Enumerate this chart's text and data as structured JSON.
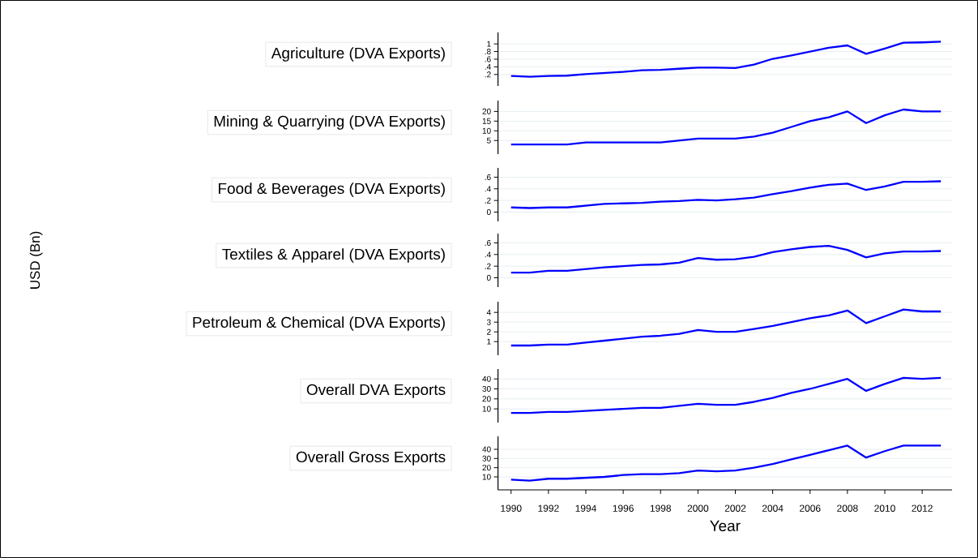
{
  "chart_data": [
    {
      "type": "line",
      "title": "Agriculture (DVA Exports)",
      "x": [
        1990,
        1991,
        1992,
        1993,
        1994,
        1995,
        1996,
        1997,
        1998,
        1999,
        2000,
        2001,
        2002,
        2003,
        2004,
        2005,
        2006,
        2007,
        2008,
        2009,
        2010,
        2011,
        2012,
        2013
      ],
      "values": [
        0.16,
        0.14,
        0.16,
        0.17,
        0.21,
        0.24,
        0.27,
        0.31,
        0.32,
        0.35,
        0.38,
        0.38,
        0.37,
        0.46,
        0.61,
        0.7,
        0.8,
        0.9,
        0.96,
        0.74,
        0.88,
        1.03,
        1.04,
        1.06
      ],
      "color": "#0000ff",
      "xlim": [
        1989.3,
        2013.6
      ],
      "ylim": [
        -0.1,
        1.3
      ],
      "yticks": [
        {
          "value": 0.2,
          "label": ".2"
        },
        {
          "value": 0.4,
          "label": ".4"
        },
        {
          "value": 0.6,
          "label": ".6"
        },
        {
          "value": 0.8,
          "label": ".8"
        },
        1
      ],
      "grid": "y",
      "tick_labels": "y",
      "marker": "none",
      "line_style": "solid"
    },
    {
      "type": "line",
      "title": "Mining & Quarrying (DVA Exports)",
      "x": [
        1990,
        1991,
        1992,
        1993,
        1994,
        1995,
        1996,
        1997,
        1998,
        1999,
        2000,
        2001,
        2002,
        2003,
        2004,
        2005,
        2006,
        2007,
        2008,
        2009,
        2010,
        2011,
        2012,
        2013
      ],
      "values": [
        3,
        3,
        3,
        3,
        4,
        4,
        4,
        4,
        4,
        5,
        6,
        6,
        6,
        7,
        9,
        12,
        15,
        17,
        20,
        14,
        18,
        21,
        20,
        20
      ],
      "color": "#0000ff",
      "xlim": [
        1989.3,
        2013.6
      ],
      "ylim": [
        -2,
        25.6
      ],
      "yticks": [
        5,
        10,
        15,
        20
      ],
      "grid": "y",
      "tick_labels": "y",
      "marker": "none",
      "line_style": "solid"
    },
    {
      "type": "line",
      "title": "Food & Beverages (DVA Exports)",
      "x": [
        1990,
        1991,
        1992,
        1993,
        1994,
        1995,
        1996,
        1997,
        1998,
        1999,
        2000,
        2001,
        2002,
        2003,
        2004,
        2005,
        2006,
        2007,
        2008,
        2009,
        2010,
        2011,
        2012,
        2013
      ],
      "values": [
        0.08,
        0.07,
        0.08,
        0.08,
        0.11,
        0.14,
        0.15,
        0.16,
        0.18,
        0.19,
        0.21,
        0.2,
        0.22,
        0.25,
        0.31,
        0.36,
        0.42,
        0.47,
        0.49,
        0.38,
        0.44,
        0.52,
        0.52,
        0.53
      ],
      "color": "#0000ff",
      "xlim": [
        1989.3,
        2013.6
      ],
      "ylim": [
        -0.16,
        0.76
      ],
      "yticks": [
        0,
        {
          "value": 0.2,
          "label": ".2"
        },
        {
          "value": 0.4,
          "label": ".4"
        },
        {
          "value": 0.6,
          "label": ".6"
        }
      ],
      "grid": "y",
      "tick_labels": "y",
      "marker": "none",
      "line_style": "solid"
    },
    {
      "type": "line",
      "title": "Textiles & Apparel (DVA Exports)",
      "ylabel": "USD (Bn)",
      "x": [
        1990,
        1991,
        1992,
        1993,
        1994,
        1995,
        1996,
        1997,
        1998,
        1999,
        2000,
        2001,
        2002,
        2003,
        2004,
        2005,
        2006,
        2007,
        2008,
        2009,
        2010,
        2011,
        2012,
        2013
      ],
      "values": [
        0.09,
        0.09,
        0.12,
        0.12,
        0.15,
        0.18,
        0.2,
        0.22,
        0.23,
        0.26,
        0.34,
        0.31,
        0.32,
        0.36,
        0.44,
        0.49,
        0.53,
        0.55,
        0.48,
        0.35,
        0.42,
        0.45,
        0.45,
        0.46
      ],
      "color": "#0000ff",
      "xlim": [
        1989.3,
        2013.6
      ],
      "ylim": [
        -0.16,
        0.76
      ],
      "yticks": [
        0,
        {
          "value": 0.2,
          "label": ".2"
        },
        {
          "value": 0.4,
          "label": ".4"
        },
        {
          "value": 0.6,
          "label": ".6"
        }
      ],
      "grid": "y",
      "tick_labels": "y",
      "marker": "none",
      "line_style": "solid"
    },
    {
      "type": "line",
      "title": "Petroleum & Chemical (DVA Exports)",
      "x": [
        1990,
        1991,
        1992,
        1993,
        1994,
        1995,
        1996,
        1997,
        1998,
        1999,
        2000,
        2001,
        2002,
        2003,
        2004,
        2005,
        2006,
        2007,
        2008,
        2009,
        2010,
        2011,
        2012,
        2013
      ],
      "values": [
        0.6,
        0.6,
        0.7,
        0.7,
        0.9,
        1.1,
        1.3,
        1.5,
        1.6,
        1.8,
        2.2,
        2.0,
        2.0,
        2.3,
        2.6,
        3.0,
        3.4,
        3.7,
        4.2,
        2.9,
        3.6,
        4.3,
        4.1,
        4.1
      ],
      "color": "#0000ff",
      "xlim": [
        1989.3,
        2013.6
      ],
      "ylim": [
        -0.4,
        5.1
      ],
      "yticks": [
        1,
        2,
        3,
        4
      ],
      "grid": "y",
      "tick_labels": "y",
      "marker": "none",
      "line_style": "solid"
    },
    {
      "type": "line",
      "title": "Overall DVA Exports",
      "x": [
        1990,
        1991,
        1992,
        1993,
        1994,
        1995,
        1996,
        1997,
        1998,
        1999,
        2000,
        2001,
        2002,
        2003,
        2004,
        2005,
        2006,
        2007,
        2008,
        2009,
        2010,
        2011,
        2012,
        2013
      ],
      "values": [
        6,
        6,
        7,
        7,
        8,
        9,
        10,
        11,
        11,
        13,
        15,
        14,
        14,
        17,
        21,
        26,
        30,
        35,
        40,
        28,
        35,
        41,
        40,
        41
      ],
      "color": "#0000ff",
      "xlim": [
        1989.3,
        2013.6
      ],
      "ylim": [
        -3.7,
        49.9
      ],
      "yticks": [
        10,
        20,
        30,
        40
      ],
      "grid": "y",
      "tick_labels": "y",
      "marker": "none",
      "line_style": "solid"
    },
    {
      "type": "line",
      "title": "Overall Gross Exports",
      "xlabel": "Year",
      "x": [
        1990,
        1991,
        1992,
        1993,
        1994,
        1995,
        1996,
        1997,
        1998,
        1999,
        2000,
        2001,
        2002,
        2003,
        2004,
        2005,
        2006,
        2007,
        2008,
        2009,
        2010,
        2011,
        2012,
        2013
      ],
      "values": [
        7,
        6,
        8,
        8,
        9,
        10,
        12,
        13,
        13,
        14,
        17,
        16,
        17,
        20,
        24,
        29,
        34,
        39,
        44,
        31,
        38,
        44,
        44,
        44
      ],
      "color": "#0000ff",
      "xlim": [
        1989.3,
        2013.6
      ],
      "xticks": [
        1990,
        1992,
        1994,
        1996,
        1998,
        2000,
        2002,
        2004,
        2006,
        2008,
        2010,
        2012
      ],
      "ylim": [
        -4.1,
        54.1
      ],
      "yticks": [
        10,
        20,
        30,
        40
      ],
      "grid": "y",
      "marker": "none",
      "line_style": "solid"
    }
  ]
}
